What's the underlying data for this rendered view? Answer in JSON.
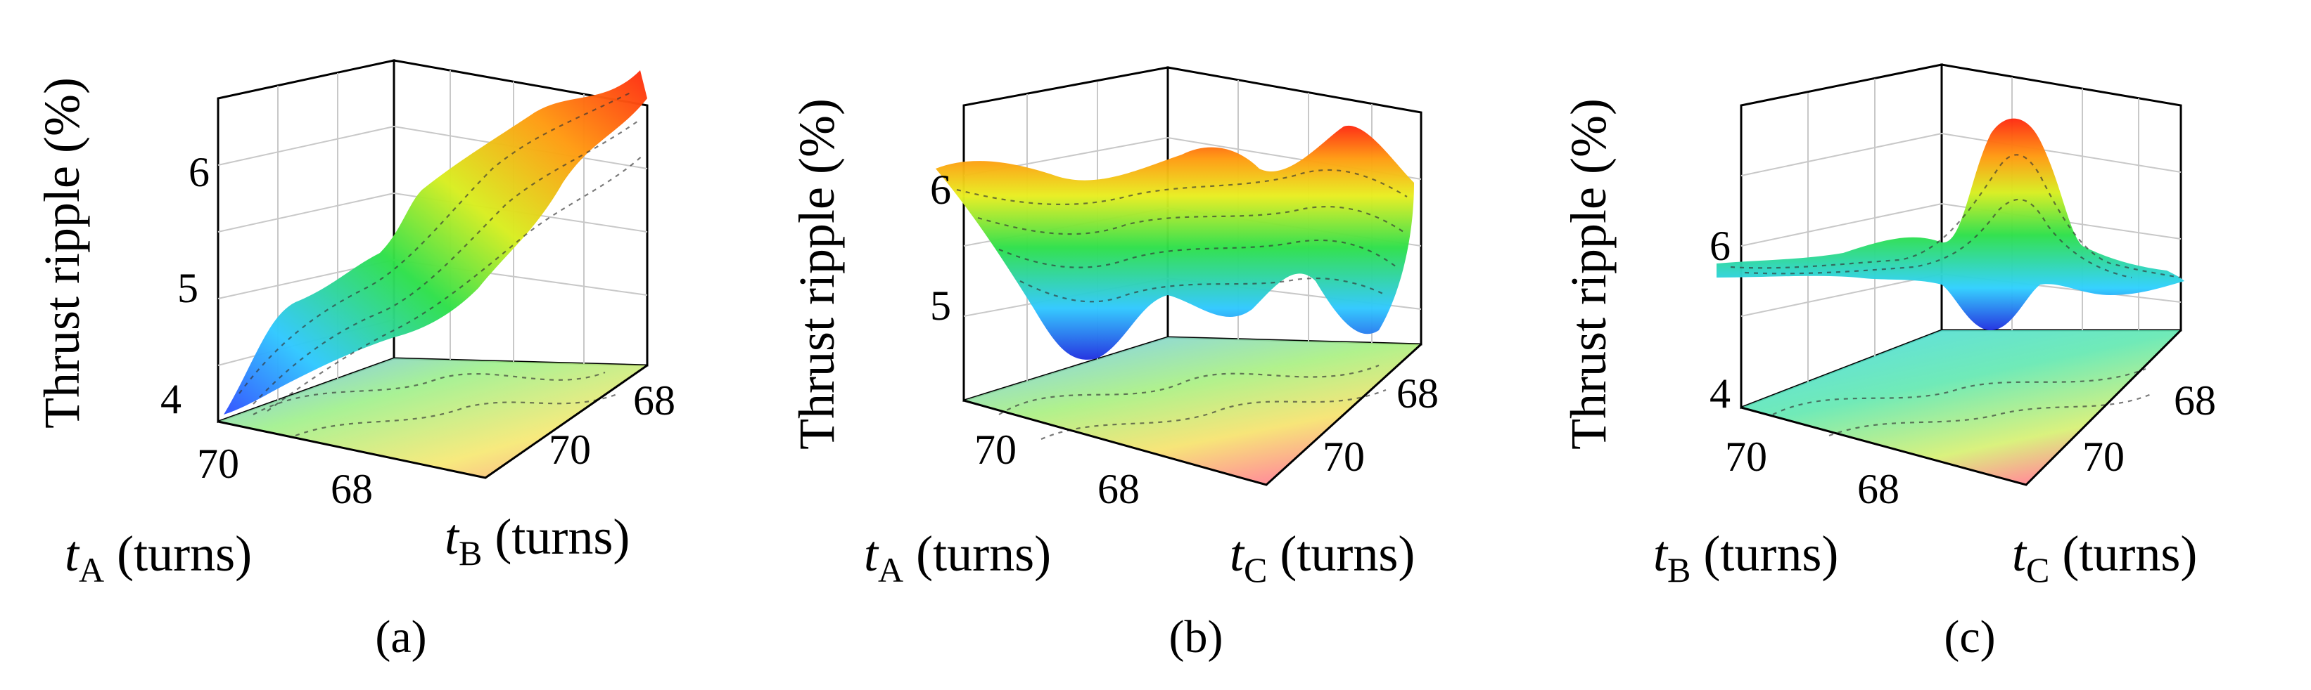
{
  "chart_data": [
    {
      "type": "surface3d",
      "panel_label": "(a)",
      "zlabel": "Thrust ripple (%)",
      "x_axis": {
        "symbol": "t",
        "sub": "A",
        "unit": "(turns)",
        "ticks": [
          70,
          68
        ]
      },
      "y_axis": {
        "symbol": "t",
        "sub": "B",
        "unit": "(turns)",
        "ticks": [
          68,
          70
        ]
      },
      "z_ticks": [
        4,
        5,
        6
      ],
      "zlim": [
        3.8,
        6.6
      ],
      "surface_z": [
        [
          3.8,
          4.2,
          4.5,
          4.7,
          5.0
        ],
        [
          4.3,
          4.7,
          5.0,
          5.3,
          5.6
        ],
        [
          4.8,
          5.1,
          5.4,
          5.7,
          6.0
        ],
        [
          5.1,
          5.4,
          5.7,
          6.1,
          6.4
        ],
        [
          5.3,
          5.6,
          5.9,
          6.3,
          6.6
        ]
      ],
      "projection_on_floor": true
    },
    {
      "type": "surface3d",
      "panel_label": "(b)",
      "zlabel": "Thrust ripple (%)",
      "x_axis": {
        "symbol": "t",
        "sub": "A",
        "unit": "(turns)",
        "ticks": [
          70,
          68
        ]
      },
      "y_axis": {
        "symbol": "t",
        "sub": "C",
        "unit": "(turns)",
        "ticks": [
          68,
          70
        ]
      },
      "z_ticks": [
        5,
        6
      ],
      "zlim": [
        4.4,
        6.6
      ],
      "surface_z": [
        [
          6.0,
          6.0,
          6.1,
          6.3,
          6.1
        ],
        [
          5.5,
          5.6,
          5.8,
          5.9,
          5.7
        ],
        [
          4.8,
          5.1,
          5.3,
          5.5,
          5.3
        ],
        [
          4.5,
          5.0,
          5.4,
          5.2,
          4.8
        ],
        [
          5.4,
          5.3,
          5.5,
          5.1,
          6.0
        ]
      ],
      "projection_on_floor": true
    },
    {
      "type": "surface3d",
      "panel_label": "(c)",
      "zlabel": "Thrust ripple (%)",
      "x_axis": {
        "symbol": "t",
        "sub": "B",
        "unit": "(turns)",
        "ticks": [
          70,
          68
        ]
      },
      "y_axis": {
        "symbol": "t",
        "sub": "C",
        "unit": "(turns)",
        "ticks": [
          68,
          70
        ]
      },
      "z_ticks": [
        4,
        6
      ],
      "zlim": [
        3.8,
        7.6
      ],
      "surface_z": [
        [
          5.7,
          5.8,
          5.7,
          5.8,
          5.7
        ],
        [
          5.8,
          5.9,
          6.6,
          5.9,
          5.8
        ],
        [
          5.7,
          5.8,
          7.4,
          5.8,
          5.6
        ],
        [
          5.6,
          5.5,
          4.6,
          5.6,
          5.5
        ],
        [
          5.5,
          5.6,
          5.5,
          5.5,
          5.4
        ]
      ],
      "projection_on_floor": true
    }
  ]
}
